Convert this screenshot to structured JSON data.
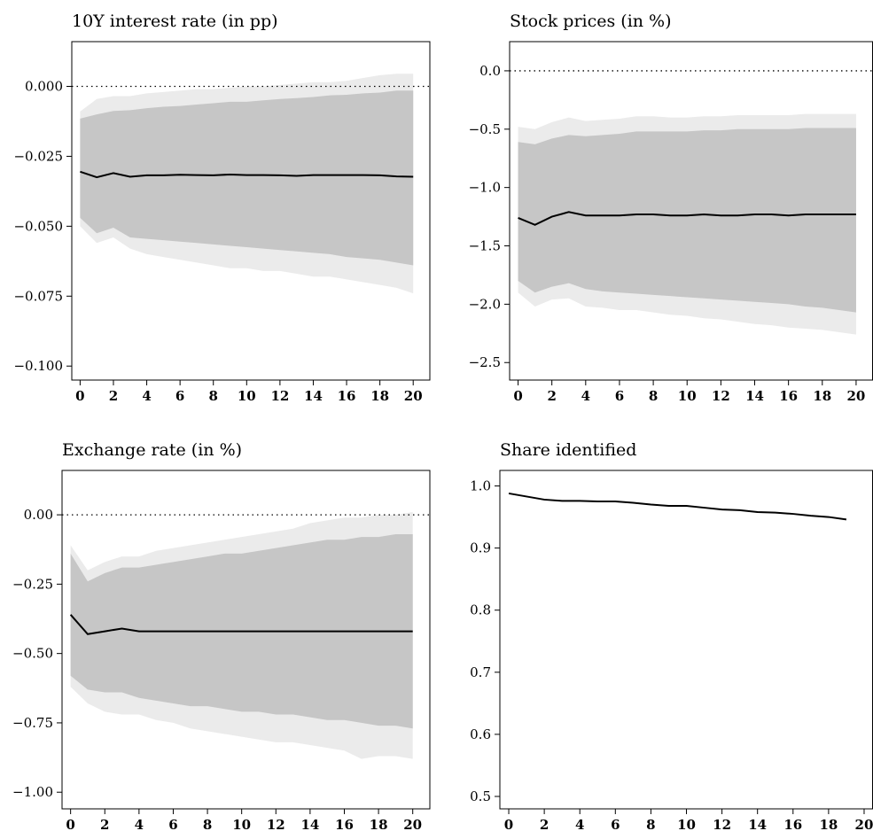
{
  "chart_data": [
    {
      "type": "area",
      "title": "10Y interest rate (in pp)",
      "xlabel": "",
      "ylabel": "",
      "xlim": [
        -0.5,
        21
      ],
      "ylim": [
        -0.105,
        0.016
      ],
      "xticks": [
        0,
        2,
        4,
        6,
        8,
        10,
        12,
        14,
        16,
        18,
        20
      ],
      "yticks": [
        0.0,
        -0.025,
        -0.05,
        -0.075,
        -0.1
      ],
      "ytick_labels": [
        "0.000",
        "−0.025",
        "−0.050",
        "−0.075",
        "−0.100"
      ],
      "zero_line": true,
      "grid": false,
      "x": [
        0,
        1,
        2,
        3,
        4,
        5,
        6,
        7,
        8,
        9,
        10,
        11,
        12,
        13,
        14,
        15,
        16,
        17,
        18,
        19,
        20
      ],
      "series": [
        {
          "role": "outer-band",
          "upper": [
            -0.009,
            -0.0045,
            -0.0035,
            -0.0035,
            -0.0025,
            -0.002,
            -0.0015,
            -0.001,
            -0.001,
            -0.0005,
            0.0,
            0.0,
            0.0005,
            0.001,
            0.0015,
            0.0015,
            0.002,
            0.003,
            0.004,
            0.0045,
            0.0045
          ],
          "lower": [
            -0.05,
            -0.056,
            -0.054,
            -0.058,
            -0.06,
            -0.061,
            -0.062,
            -0.063,
            -0.064,
            -0.065,
            -0.065,
            -0.066,
            -0.066,
            -0.067,
            -0.068,
            -0.068,
            -0.069,
            -0.07,
            -0.071,
            -0.072,
            -0.074
          ]
        },
        {
          "role": "inner-band",
          "upper": [
            -0.0115,
            -0.01,
            -0.0088,
            -0.0085,
            -0.0078,
            -0.0073,
            -0.007,
            -0.0065,
            -0.006,
            -0.0055,
            -0.0055,
            -0.005,
            -0.0045,
            -0.0042,
            -0.0038,
            -0.0032,
            -0.003,
            -0.0025,
            -0.0022,
            -0.0015,
            -0.0015
          ],
          "lower": [
            -0.047,
            -0.0525,
            -0.0505,
            -0.054,
            -0.0545,
            -0.055,
            -0.0555,
            -0.056,
            -0.0565,
            -0.057,
            -0.0575,
            -0.058,
            -0.0585,
            -0.059,
            -0.0595,
            -0.06,
            -0.061,
            -0.0615,
            -0.062,
            -0.063,
            -0.064
          ]
        },
        {
          "role": "median",
          "values": [
            -0.0305,
            -0.0325,
            -0.031,
            -0.0323,
            -0.0318,
            -0.0318,
            -0.0316,
            -0.0317,
            -0.0318,
            -0.0315,
            -0.0317,
            -0.0317,
            -0.0318,
            -0.032,
            -0.0317,
            -0.0317,
            -0.0317,
            -0.0317,
            -0.0318,
            -0.0322,
            -0.0323
          ]
        }
      ]
    },
    {
      "type": "area",
      "title": "Stock prices (in %)",
      "xlabel": "",
      "ylabel": "",
      "xlim": [
        -0.5,
        21
      ],
      "ylim": [
        -2.65,
        0.25
      ],
      "xticks": [
        0,
        2,
        4,
        6,
        8,
        10,
        12,
        14,
        16,
        18,
        20
      ],
      "yticks": [
        0.0,
        -0.5,
        -1.0,
        -1.5,
        -2.0,
        -2.5
      ],
      "ytick_labels": [
        "0.0",
        "−0.5",
        "−1.0",
        "−1.5",
        "−2.0",
        "−2.5"
      ],
      "zero_line": true,
      "grid": false,
      "x": [
        0,
        1,
        2,
        3,
        4,
        5,
        6,
        7,
        8,
        9,
        10,
        11,
        12,
        13,
        14,
        15,
        16,
        17,
        18,
        19,
        20
      ],
      "series": [
        {
          "role": "outer-band",
          "upper": [
            -0.48,
            -0.5,
            -0.44,
            -0.4,
            -0.43,
            -0.42,
            -0.41,
            -0.39,
            -0.39,
            -0.4,
            -0.4,
            -0.39,
            -0.39,
            -0.38,
            -0.38,
            -0.38,
            -0.38,
            -0.37,
            -0.37,
            -0.37,
            -0.37
          ],
          "lower": [
            -1.9,
            -2.02,
            -1.96,
            -1.95,
            -2.02,
            -2.03,
            -2.05,
            -2.05,
            -2.07,
            -2.09,
            -2.1,
            -2.12,
            -2.13,
            -2.15,
            -2.17,
            -2.18,
            -2.2,
            -2.21,
            -2.22,
            -2.24,
            -2.26
          ]
        },
        {
          "role": "inner-band",
          "upper": [
            -0.61,
            -0.63,
            -0.58,
            -0.55,
            -0.56,
            -0.55,
            -0.54,
            -0.52,
            -0.52,
            -0.52,
            -0.52,
            -0.51,
            -0.51,
            -0.5,
            -0.5,
            -0.5,
            -0.5,
            -0.49,
            -0.49,
            -0.49,
            -0.49
          ],
          "lower": [
            -1.8,
            -1.9,
            -1.85,
            -1.82,
            -1.87,
            -1.89,
            -1.9,
            -1.91,
            -1.92,
            -1.93,
            -1.94,
            -1.95,
            -1.96,
            -1.97,
            -1.98,
            -1.99,
            -2.0,
            -2.02,
            -2.03,
            -2.05,
            -2.07
          ]
        },
        {
          "role": "median",
          "values": [
            -1.26,
            -1.32,
            -1.25,
            -1.21,
            -1.24,
            -1.24,
            -1.24,
            -1.23,
            -1.23,
            -1.24,
            -1.24,
            -1.23,
            -1.24,
            -1.24,
            -1.23,
            -1.23,
            -1.24,
            -1.23,
            -1.23,
            -1.23,
            -1.23
          ]
        }
      ]
    },
    {
      "type": "area",
      "title": "Exchange rate (in %)",
      "xlabel": "",
      "ylabel": "",
      "xlim": [
        -0.5,
        21
      ],
      "ylim": [
        -1.06,
        0.16
      ],
      "xticks": [
        0,
        2,
        4,
        6,
        8,
        10,
        12,
        14,
        16,
        18,
        20
      ],
      "yticks": [
        0.0,
        -0.25,
        -0.5,
        -0.75,
        -1.0
      ],
      "ytick_labels": [
        "0.00",
        "−0.25",
        "−0.50",
        "−0.75",
        "−1.00"
      ],
      "zero_line": true,
      "grid": false,
      "x": [
        0,
        1,
        2,
        3,
        4,
        5,
        6,
        7,
        8,
        9,
        10,
        11,
        12,
        13,
        14,
        15,
        16,
        17,
        18,
        19,
        20
      ],
      "series": [
        {
          "role": "outer-band",
          "upper": [
            -0.11,
            -0.2,
            -0.17,
            -0.15,
            -0.15,
            -0.13,
            -0.12,
            -0.11,
            -0.1,
            -0.09,
            -0.08,
            -0.07,
            -0.06,
            -0.05,
            -0.03,
            -0.02,
            -0.01,
            -0.01,
            0.0,
            0.0,
            0.01
          ],
          "lower": [
            -0.62,
            -0.68,
            -0.71,
            -0.72,
            -0.72,
            -0.74,
            -0.75,
            -0.77,
            -0.78,
            -0.79,
            -0.8,
            -0.81,
            -0.82,
            -0.82,
            -0.83,
            -0.84,
            -0.85,
            -0.88,
            -0.87,
            -0.87,
            -0.88
          ]
        },
        {
          "role": "inner-band",
          "upper": [
            -0.14,
            -0.24,
            -0.21,
            -0.19,
            -0.19,
            -0.18,
            -0.17,
            -0.16,
            -0.15,
            -0.14,
            -0.14,
            -0.13,
            -0.12,
            -0.11,
            -0.1,
            -0.09,
            -0.09,
            -0.08,
            -0.08,
            -0.07,
            -0.07
          ],
          "lower": [
            -0.58,
            -0.63,
            -0.64,
            -0.64,
            -0.66,
            -0.67,
            -0.68,
            -0.69,
            -0.69,
            -0.7,
            -0.71,
            -0.71,
            -0.72,
            -0.72,
            -0.73,
            -0.74,
            -0.74,
            -0.75,
            -0.76,
            -0.76,
            -0.77
          ]
        },
        {
          "role": "median",
          "values": [
            -0.36,
            -0.43,
            -0.42,
            -0.41,
            -0.42,
            -0.42,
            -0.42,
            -0.42,
            -0.42,
            -0.42,
            -0.42,
            -0.42,
            -0.42,
            -0.42,
            -0.42,
            -0.42,
            -0.42,
            -0.42,
            -0.42,
            -0.42,
            -0.42
          ]
        }
      ]
    },
    {
      "type": "line",
      "title": "Share identified",
      "xlabel": "",
      "ylabel": "",
      "xlim": [
        -0.5,
        20.5
      ],
      "ylim": [
        0.48,
        1.025
      ],
      "xticks": [
        0,
        2,
        4,
        6,
        8,
        10,
        12,
        14,
        16,
        18,
        20
      ],
      "yticks": [
        1.0,
        0.9,
        0.8,
        0.7,
        0.6,
        0.5
      ],
      "ytick_labels": [
        "1.0",
        "0.9",
        "0.8",
        "0.7",
        "0.6",
        "0.5"
      ],
      "zero_line": false,
      "grid": false,
      "x": [
        0,
        1,
        2,
        3,
        4,
        5,
        6,
        7,
        8,
        9,
        10,
        11,
        12,
        13,
        14,
        15,
        16,
        17,
        18,
        19
      ],
      "series": [
        {
          "role": "median",
          "values": [
            0.988,
            0.983,
            0.978,
            0.976,
            0.976,
            0.975,
            0.975,
            0.973,
            0.97,
            0.968,
            0.968,
            0.965,
            0.962,
            0.961,
            0.958,
            0.957,
            0.955,
            0.952,
            0.95,
            0.946
          ]
        }
      ]
    }
  ],
  "colors": {
    "outer_band": "#ebebeb",
    "inner_band": "#c6c6c6",
    "median": "#000000",
    "frame": "#000000"
  }
}
